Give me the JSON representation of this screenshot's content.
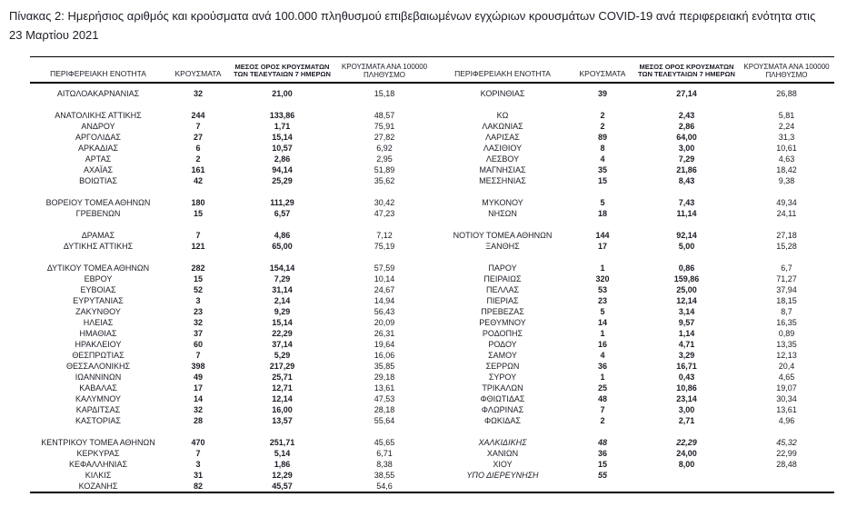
{
  "title": "Πίνακας 2:  Ημερήσιος αριθμός και κρούσματα ανά 100.000 πληθυσμού επιβεβαιωμένων εγχώριων κρουσμάτων COVID-19 ανά περιφερειακή ενότητα στις 23 Μαρτίου 2021",
  "table": {
    "headers": {
      "region": "ΠΕΡΙΦΕΡΕΙΑΚΗ ΕΝΟΤΗΤΑ",
      "cases": "ΚΡΟΥΣΜΑΤΑ",
      "avg7": "ΜΕΣΟΣ ΟΡΟΣ ΚΡΟΥΣΜΑΤΩΝ ΤΩΝ ΤΕΛΕΥΤΑΙΩΝ 7 ΗΜΕΡΩΝ",
      "per100k": "ΚΡΟΥΣΜΑΤΑ ΑΝΑ 100000 ΠΛΗΘΥΣΜΟ"
    },
    "rows": [
      {
        "l": [
          "ΑΙΤΩΛΟΑΚΑΡΝΑΝΙΑΣ",
          "32",
          "21,00",
          "15,18"
        ],
        "r": [
          "ΚΟΡΙΝΘΙΑΣ",
          "39",
          "27,14",
          "26,88"
        ]
      },
      {
        "l": [
          "",
          "",
          "",
          ""
        ],
        "r": [
          "",
          "",
          "",
          ""
        ]
      },
      {
        "l": [
          "ΑΝΑΤΟΛΙΚΗΣ ΑΤΤΙΚΗΣ",
          "244",
          "133,86",
          "48,57"
        ],
        "r": [
          "ΚΩ",
          "2",
          "2,43",
          "5,81"
        ]
      },
      {
        "l": [
          "ΑΝΔΡΟΥ",
          "7",
          "1,71",
          "75,91"
        ],
        "r": [
          "ΛΑΚΩΝΙΑΣ",
          "2",
          "2,86",
          "2,24"
        ]
      },
      {
        "l": [
          "ΑΡΓΟΛΙΔΑΣ",
          "27",
          "15,14",
          "27,82"
        ],
        "r": [
          "ΛΑΡΙΣΑΣ",
          "89",
          "64,00",
          "31,3"
        ]
      },
      {
        "l": [
          "ΑΡΚΑΔΙΑΣ",
          "6",
          "10,57",
          "6,92"
        ],
        "r": [
          "ΛΑΣΙΘΙΟΥ",
          "8",
          "3,00",
          "10,61"
        ]
      },
      {
        "l": [
          "ΑΡΤΑΣ",
          "2",
          "2,86",
          "2,95"
        ],
        "r": [
          "ΛΕΣΒΟΥ",
          "4",
          "7,29",
          "4,63"
        ]
      },
      {
        "l": [
          "ΑΧΑΪΑΣ",
          "161",
          "94,14",
          "51,89"
        ],
        "r": [
          "ΜΑΓΝΗΣΙΑΣ",
          "35",
          "21,86",
          "18,42"
        ]
      },
      {
        "l": [
          "ΒΟΙΩΤΙΑΣ",
          "42",
          "25,29",
          "35,62"
        ],
        "r": [
          "ΜΕΣΣΗΝΙΑΣ",
          "15",
          "8,43",
          "9,38"
        ]
      },
      {
        "l": [
          "",
          "",
          "",
          ""
        ],
        "r": [
          "",
          "",
          "",
          ""
        ]
      },
      {
        "l": [
          "ΒΟΡΕΙΟΥ ΤΟΜΕΑ ΑΘΗΝΩΝ",
          "180",
          "111,29",
          "30,42"
        ],
        "r": [
          "ΜΥΚΟΝΟΥ",
          "5",
          "7,43",
          "49,34"
        ]
      },
      {
        "l": [
          "ΓΡΕΒΕΝΩΝ",
          "15",
          "6,57",
          "47,23"
        ],
        "r": [
          "ΝΗΣΩΝ",
          "18",
          "11,14",
          "24,11"
        ]
      },
      {
        "l": [
          "",
          "",
          "",
          ""
        ],
        "r": [
          "",
          "",
          "",
          ""
        ]
      },
      {
        "l": [
          "ΔΡΑΜΑΣ",
          "7",
          "4,86",
          "7,12"
        ],
        "r": [
          "ΝΟΤΙΟΥ ΤΟΜΕΑ ΑΘΗΝΩΝ",
          "144",
          "92,14",
          "27,18"
        ]
      },
      {
        "l": [
          "ΔΥΤΙΚΗΣ ΑΤΤΙΚΗΣ",
          "121",
          "65,00",
          "75,19"
        ],
        "r": [
          "ΞΑΝΘΗΣ",
          "17",
          "5,00",
          "15,28"
        ]
      },
      {
        "l": [
          "",
          "",
          "",
          ""
        ],
        "r": [
          "",
          "",
          "",
          ""
        ]
      },
      {
        "l": [
          "ΔΥΤΙΚΟΥ ΤΟΜΕΑ ΑΘΗΝΩΝ",
          "282",
          "154,14",
          "57,59"
        ],
        "r": [
          "ΠΑΡΟΥ",
          "1",
          "0,86",
          "6,7"
        ]
      },
      {
        "l": [
          "ΕΒΡΟΥ",
          "15",
          "7,29",
          "10,14"
        ],
        "r": [
          "ΠΕΙΡΑΙΩΣ",
          "320",
          "159,86",
          "71,27"
        ]
      },
      {
        "l": [
          "ΕΥΒΟΙΑΣ",
          "52",
          "31,14",
          "24,67"
        ],
        "r": [
          "ΠΕΛΛΑΣ",
          "53",
          "25,00",
          "37,94"
        ]
      },
      {
        "l": [
          "ΕΥΡΥΤΑΝΙΑΣ",
          "3",
          "2,14",
          "14,94"
        ],
        "r": [
          "ΠΙΕΡΙΑΣ",
          "23",
          "12,14",
          "18,15"
        ]
      },
      {
        "l": [
          "ΖΑΚΥΝΘΟΥ",
          "23",
          "9,29",
          "56,43"
        ],
        "r": [
          "ΠΡΕΒΕΖΑΣ",
          "5",
          "3,14",
          "8,7"
        ]
      },
      {
        "l": [
          "ΗΛΕΙΑΣ",
          "32",
          "15,14",
          "20,09"
        ],
        "r": [
          "ΡΕΘΥΜΝΟΥ",
          "14",
          "9,57",
          "16,35"
        ]
      },
      {
        "l": [
          "ΗΜΑΘΙΑΣ",
          "37",
          "22,29",
          "26,31"
        ],
        "r": [
          "ΡΟΔΟΠΗΣ",
          "1",
          "1,14",
          "0,89"
        ]
      },
      {
        "l": [
          "ΗΡΑΚΛΕΙΟΥ",
          "60",
          "37,14",
          "19,64"
        ],
        "r": [
          "ΡΟΔΟΥ",
          "16",
          "4,71",
          "13,35"
        ]
      },
      {
        "l": [
          "ΘΕΣΠΡΩΤΙΑΣ",
          "7",
          "5,29",
          "16,06"
        ],
        "r": [
          "ΣΑΜΟΥ",
          "4",
          "3,29",
          "12,13"
        ]
      },
      {
        "l": [
          "ΘΕΣΣΑΛΟΝΙΚΗΣ",
          "398",
          "217,29",
          "35,85"
        ],
        "r": [
          "ΣΕΡΡΩΝ",
          "36",
          "16,71",
          "20,4"
        ]
      },
      {
        "l": [
          "ΙΩΑΝΝΙΝΩΝ",
          "49",
          "25,71",
          "29,18"
        ],
        "r": [
          "ΣΥΡΟΥ",
          "1",
          "0,43",
          "4,65"
        ]
      },
      {
        "l": [
          "ΚΑΒΑΛΑΣ",
          "17",
          "12,71",
          "13,61"
        ],
        "r": [
          "ΤΡΙΚΑΛΩΝ",
          "25",
          "10,86",
          "19,07"
        ]
      },
      {
        "l": [
          "ΚΑΛΥΜΝΟΥ",
          "14",
          "12,14",
          "47,53"
        ],
        "r": [
          "ΦΘΙΩΤΙΔΑΣ",
          "48",
          "23,14",
          "30,34"
        ]
      },
      {
        "l": [
          "ΚΑΡΔΙΤΣΑΣ",
          "32",
          "16,00",
          "28,18"
        ],
        "r": [
          "ΦΛΩΡΙΝΑΣ",
          "7",
          "3,00",
          "13,61"
        ]
      },
      {
        "l": [
          "ΚΑΣΤΟΡΙΑΣ",
          "28",
          "13,57",
          "55,64"
        ],
        "r": [
          "ΦΩΚΙΔΑΣ",
          "2",
          "2,71",
          "4,96"
        ]
      },
      {
        "l": [
          "",
          "",
          "",
          ""
        ],
        "r": [
          "",
          "",
          "",
          ""
        ]
      },
      {
        "l": [
          "ΚΕΝΤΡΙΚΟΥ ΤΟΜΕΑ ΑΘΗΝΩΝ",
          "470",
          "251,71",
          "45,65"
        ],
        "r": [
          "ΧΑΛΚΙΔΙΚΗΣ",
          "48",
          "22,29",
          "45,32"
        ],
        "ri": true
      },
      {
        "l": [
          "ΚΕΡΚΥΡΑΣ",
          "7",
          "5,14",
          "6,71"
        ],
        "r": [
          "ΧΑΝΙΩΝ",
          "36",
          "24,00",
          "22,99"
        ]
      },
      {
        "l": [
          "ΚΕΦΑΛΛΗΝΙΑΣ",
          "3",
          "1,86",
          "8,38"
        ],
        "r": [
          "ΧΙΟΥ",
          "15",
          "8,00",
          "28,48"
        ]
      },
      {
        "l": [
          "ΚΙΛΚΙΣ",
          "31",
          "12,29",
          "38,55"
        ],
        "r": [
          "ΥΠΟ ΔΙΕΡΕΥΝΗΣΗ",
          "55",
          "",
          ""
        ],
        "ri": true
      },
      {
        "l": [
          "ΚΟΖΑΝΗΣ",
          "82",
          "45,57",
          "54,6"
        ],
        "r": [
          "",
          "",
          "",
          ""
        ]
      }
    ]
  },
  "colors": {
    "text": "#1c1c26",
    "border": "#000000",
    "background": "#ffffff"
  }
}
